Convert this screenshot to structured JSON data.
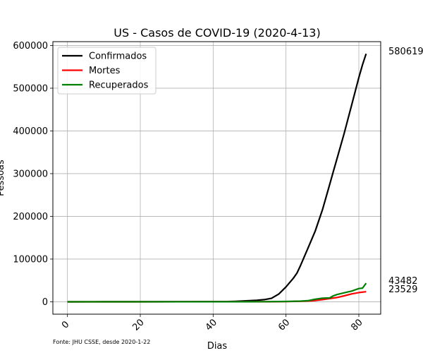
{
  "chart_data": {
    "type": "line",
    "title": "US - Casos de COVID-19 (2020-4-13)",
    "xlabel": "Dias",
    "ylabel": "Pessoas",
    "xlim": [
      -4,
      86
    ],
    "ylim": [
      -29000,
      609000
    ],
    "xticks": [
      0,
      20,
      40,
      60,
      80
    ],
    "yticks": [
      0,
      100000,
      200000,
      300000,
      400000,
      500000,
      600000
    ],
    "grid": true,
    "legend_position": "top-left",
    "source_note": "Fonte: JHU CSSE, desde 2020-1-22",
    "end_labels": [
      "580619",
      "43482",
      "23529"
    ],
    "series": [
      {
        "name": "Confirmados",
        "color": "#000000",
        "x": [
          0,
          10,
          20,
          30,
          40,
          44,
          46,
          48,
          50,
          52,
          54,
          56,
          58,
          60,
          62,
          63,
          64,
          66,
          68,
          70,
          72,
          73,
          74,
          76,
          78,
          80,
          81,
          82
        ],
        "y": [
          1,
          12,
          15,
          60,
          500,
          600,
          1000,
          1700,
          2500,
          3500,
          5000,
          8000,
          18000,
          35000,
          55000,
          67000,
          85000,
          125000,
          165000,
          215000,
          275000,
          305000,
          335000,
          395000,
          460000,
          525000,
          555000,
          580619
        ]
      },
      {
        "name": "Mortes",
        "color": "#ff0000",
        "x": [
          0,
          20,
          40,
          50,
          55,
          60,
          64,
          66,
          68,
          70,
          72,
          74,
          76,
          78,
          80,
          82
        ],
        "y": [
          0,
          0,
          10,
          50,
          100,
          400,
          1000,
          1700,
          3000,
          5000,
          7500,
          10000,
          14000,
          18500,
          21500,
          23529
        ]
      },
      {
        "name": "Recuperados",
        "color": "#008000",
        "x": [
          0,
          20,
          40,
          50,
          55,
          60,
          64,
          66,
          68,
          70,
          72,
          73,
          74,
          76,
          78,
          80,
          81,
          82
        ],
        "y": [
          0,
          0,
          10,
          100,
          300,
          800,
          1500,
          2500,
          6000,
          8500,
          9000,
          14000,
          17000,
          21000,
          25000,
          31000,
          32000,
          43482
        ]
      }
    ]
  }
}
